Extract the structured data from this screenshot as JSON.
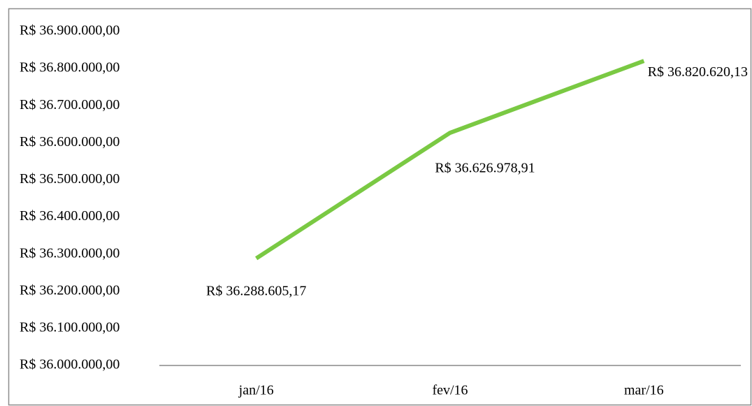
{
  "chart_data": {
    "type": "line",
    "categories": [
      "jan/16",
      "fev/16",
      "mar/16"
    ],
    "series": [
      {
        "name": null,
        "color": "#7ac943",
        "values": [
          36288605.17,
          36626978.91,
          36820620.13
        ],
        "value_labels": [
          "R$ 36.288.605,17",
          "R$ 36.626.978,91",
          "R$ 36.820.620,13"
        ]
      }
    ],
    "ylim": [
      36000000,
      36900000
    ],
    "yticks": [
      {
        "value": 36000000,
        "label": "R$ 36.000.000,00"
      },
      {
        "value": 36100000,
        "label": "R$ 36.100.000,00"
      },
      {
        "value": 36200000,
        "label": "R$ 36.200.000,00"
      },
      {
        "value": 36300000,
        "label": "R$ 36.300.000,00"
      },
      {
        "value": 36400000,
        "label": "R$ 36.400.000,00"
      },
      {
        "value": 36500000,
        "label": "R$ 36.500.000,00"
      },
      {
        "value": 36600000,
        "label": "R$ 36.600.000,00"
      },
      {
        "value": 36700000,
        "label": "R$ 36.700.000,00"
      },
      {
        "value": 36800000,
        "label": "R$ 36.800.000,00"
      },
      {
        "value": 36900000,
        "label": "R$ 36.900.000,00"
      }
    ],
    "grid": false
  }
}
